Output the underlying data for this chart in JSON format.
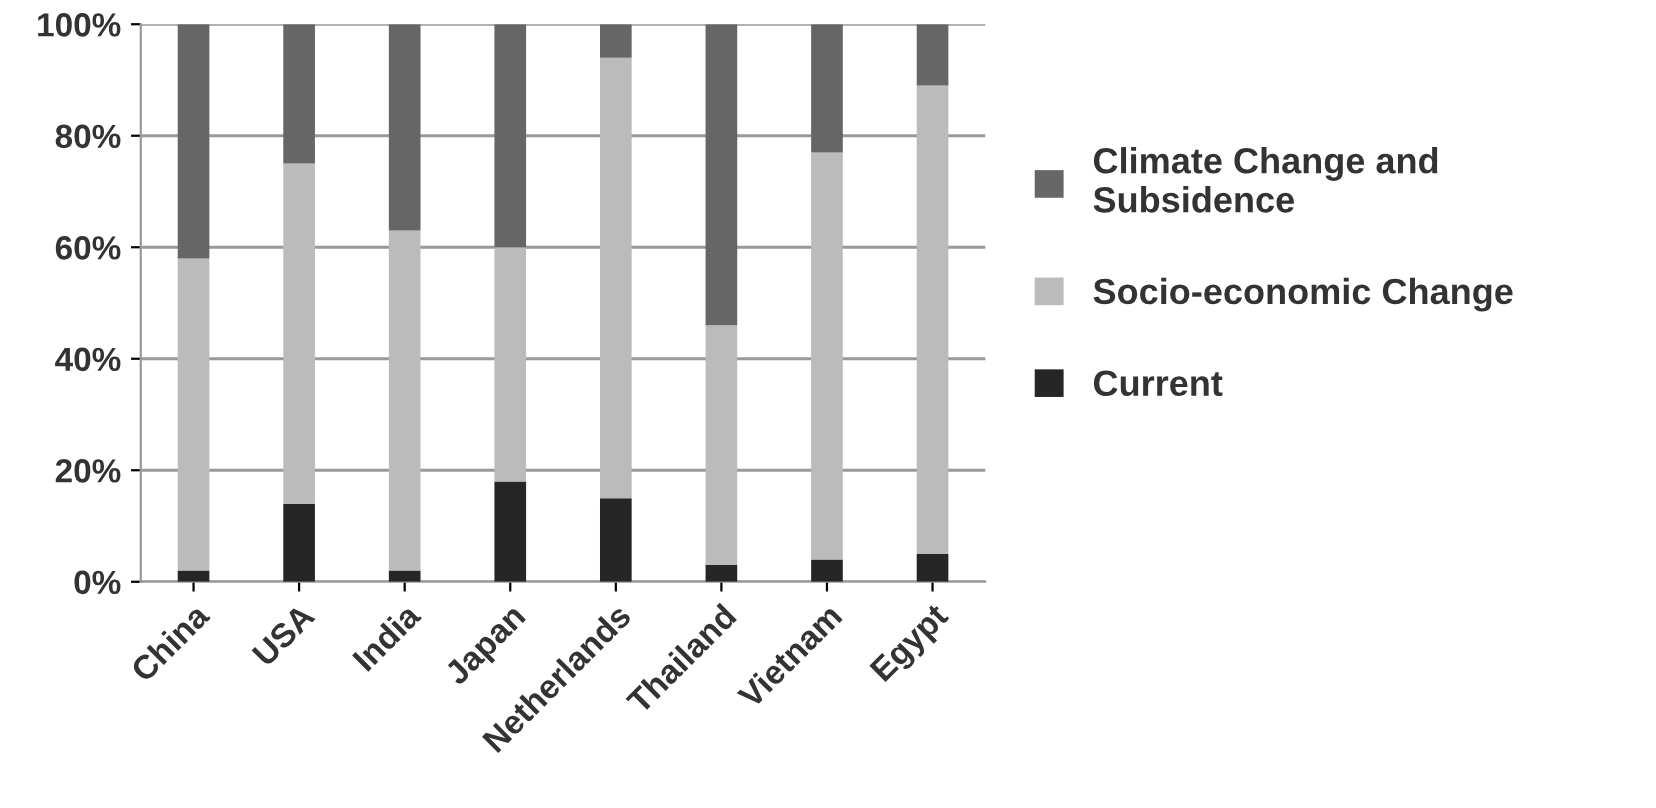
{
  "chart_data": {
    "type": "bar",
    "stacked": true,
    "categories": [
      "China",
      "USA",
      "India",
      "Japan",
      "Netherlands",
      "Thailand",
      "Vietnam",
      "Egypt"
    ],
    "series": [
      {
        "name": "Current",
        "color": "#262626",
        "values": [
          2,
          14,
          2,
          18,
          15,
          3,
          4,
          5
        ]
      },
      {
        "name": "Socio-economic Change",
        "color": "#bbbbbb",
        "values": [
          56,
          61,
          61,
          42,
          79,
          43,
          73,
          84
        ]
      },
      {
        "name": "Climate Change and Subsidence",
        "color": "#666666",
        "values": [
          42,
          25,
          37,
          40,
          6,
          54,
          23,
          11
        ]
      }
    ],
    "ylim": [
      0,
      100
    ],
    "yticks": [
      {
        "value": 0,
        "label": "0%"
      },
      {
        "value": 20,
        "label": "20%"
      },
      {
        "value": 40,
        "label": "40%"
      },
      {
        "value": 60,
        "label": "60%"
      },
      {
        "value": 80,
        "label": "80%"
      },
      {
        "value": 100,
        "label": "100%"
      }
    ],
    "grid": "y",
    "legend": "right"
  }
}
